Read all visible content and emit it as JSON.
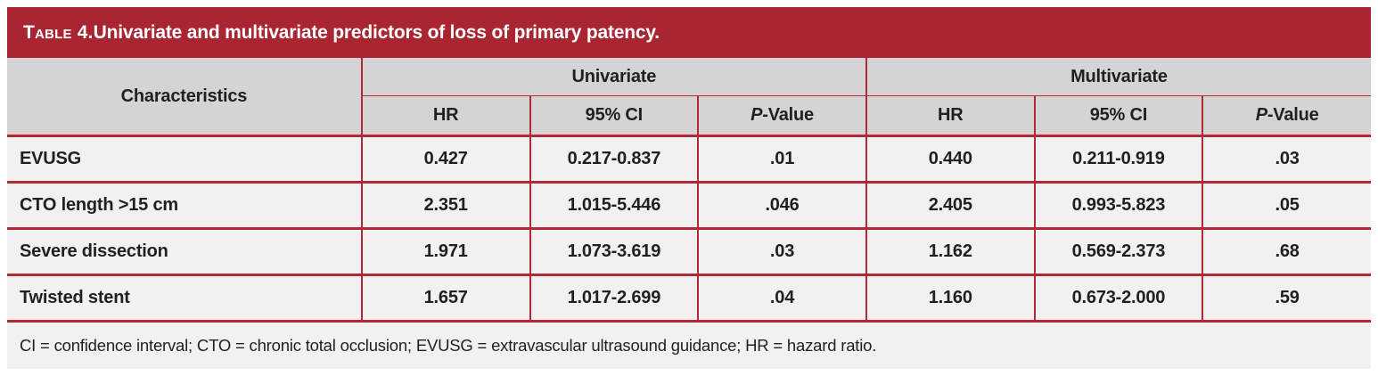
{
  "title": {
    "prefix": "Table 4.",
    "rest": " Univariate and multivariate predictors of loss of primary patency."
  },
  "colors": {
    "accent_red": "#a92531",
    "border_red": "#b02a36",
    "header_bg": "#d6d3d4",
    "row_bg": "#f2f0f0",
    "text": "#231f20",
    "title_text": "#ffffff"
  },
  "table": {
    "characteristics_header": "Characteristics",
    "groups": {
      "univariate": "Univariate",
      "multivariate": "Multivariate"
    },
    "sub_headers": {
      "hr": "HR",
      "ci": "95% CI",
      "p_italic": "P",
      "p_rest": "-Value"
    },
    "rows": [
      {
        "label": "EVUSG",
        "uni_hr": "0.427",
        "uni_ci": "0.217-0.837",
        "uni_p": ".01",
        "multi_hr": "0.440",
        "multi_ci": "0.211-0.919",
        "multi_p": ".03"
      },
      {
        "label": "CTO length >15 cm",
        "uni_hr": "2.351",
        "uni_ci": "1.015-5.446",
        "uni_p": ".046",
        "multi_hr": "2.405",
        "multi_ci": "0.993-5.823",
        "multi_p": ".05"
      },
      {
        "label": "Severe dissection",
        "uni_hr": "1.971",
        "uni_ci": "1.073-3.619",
        "uni_p": ".03",
        "multi_hr": "1.162",
        "multi_ci": "0.569-2.373",
        "multi_p": ".68"
      },
      {
        "label": "Twisted stent",
        "uni_hr": "1.657",
        "uni_ci": "1.017-2.699",
        "uni_p": ".04",
        "multi_hr": "1.160",
        "multi_ci": "0.673-2.000",
        "multi_p": ".59"
      }
    ]
  },
  "footnote": "CI = confidence interval; CTO = chronic total occlusion; EVUSG = extravascular ultrasound guidance; HR = hazard ratio."
}
